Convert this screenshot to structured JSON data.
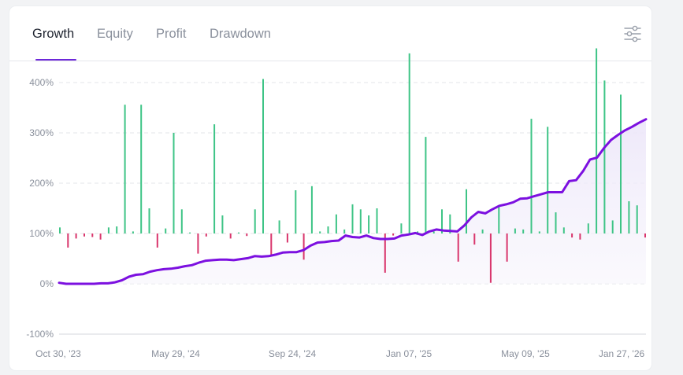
{
  "tabs": [
    {
      "label": "Growth",
      "active": true
    },
    {
      "label": "Equity",
      "active": false
    },
    {
      "label": "Profit",
      "active": false
    },
    {
      "label": "Drawdown",
      "active": false
    }
  ],
  "icons": {
    "filter": "sliders-icon"
  },
  "colors": {
    "accent": "#6d28d9",
    "line": "#7c10e0",
    "positive": "#3ec486",
    "negative": "#d9356c",
    "grid": "#e3e5ea",
    "axis_text": "#8a909c"
  },
  "chart_data": {
    "type": "line+bar",
    "y_ticks": [
      "400%",
      "300%",
      "200%",
      "100%",
      "0%",
      "-100%"
    ],
    "ylim": [
      -100,
      400
    ],
    "x_tick_labels": [
      "Oct 30, '23",
      "May 29, '24",
      "Sep 24, '24",
      "Jan 07, '25",
      "May 09, '25",
      "Jan 27, '26"
    ],
    "baseline_percent": 100,
    "series": [
      {
        "type": "bar",
        "values": [
          12,
          -28,
          -10,
          -6,
          -7,
          -12,
          12,
          14,
          256,
          4,
          256,
          50,
          -28,
          10,
          200,
          48,
          2,
          -40,
          -6,
          217,
          36,
          -10,
          2,
          -5,
          48,
          307,
          -45,
          26,
          -18,
          86,
          -52,
          94,
          4,
          14,
          38,
          8,
          58,
          48,
          36,
          50,
          -78,
          -4,
          20,
          358,
          4,
          192,
          4,
          48,
          38,
          -56,
          88,
          -22,
          8,
          -98,
          56,
          -56,
          10,
          8,
          228,
          4,
          212,
          42,
          12,
          -8,
          -12,
          20,
          368,
          304,
          26,
          276,
          64,
          56,
          -8
        ]
      },
      {
        "type": "line",
        "values": [
          2,
          0,
          0,
          0,
          0,
          0,
          1,
          1,
          3,
          7,
          14,
          18,
          19,
          24,
          27,
          29,
          30,
          32,
          35,
          37,
          42,
          46,
          47,
          48,
          48,
          47,
          49,
          51,
          55,
          54,
          55,
          58,
          62,
          63,
          63,
          67,
          76,
          82,
          83,
          85,
          86,
          96,
          93,
          92,
          96,
          91,
          89,
          89,
          90,
          96,
          98,
          101,
          97,
          104,
          108,
          106,
          105,
          104,
          116,
          132,
          143,
          140,
          148,
          155,
          158,
          162,
          169,
          170,
          174,
          178,
          182,
          182,
          182,
          204,
          206,
          224,
          247,
          251,
          270,
          286,
          296,
          305,
          312,
          320,
          327
        ]
      }
    ]
  }
}
